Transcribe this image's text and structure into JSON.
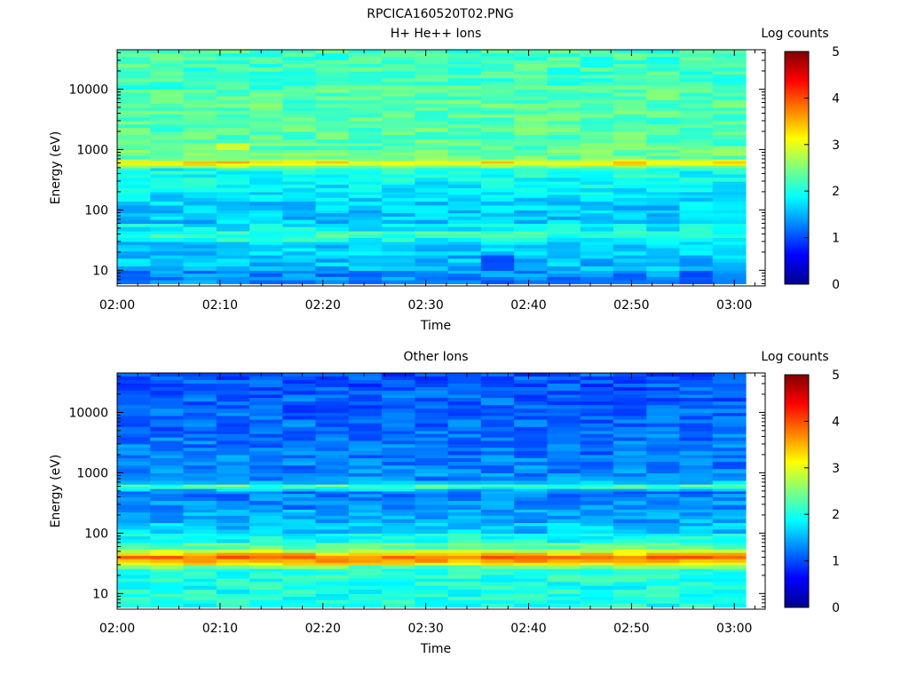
{
  "figure_title": "RPCICA160520T02.PNG",
  "chart_data": [
    {
      "type": "heatmap",
      "title": "H+ He++ Ions",
      "xlabel": "Time",
      "ylabel": "Energy (eV)",
      "x_ticks": [
        "02:00",
        "02:10",
        "02:20",
        "02:30",
        "02:40",
        "02:50",
        "03:00"
      ],
      "x_range": [
        "02:00",
        "03:03"
      ],
      "y_scale": "log",
      "y_range": [
        5.5,
        45000
      ],
      "y_ticks": [
        10,
        100,
        1000,
        10000
      ],
      "y_tick_labels": [
        "10",
        "100",
        "1000",
        "10000"
      ],
      "colorbar": {
        "title": "Log counts",
        "range": [
          0,
          5
        ],
        "ticks": [
          "0",
          "1",
          "2",
          "3",
          "4",
          "5"
        ],
        "colormap": "jet"
      },
      "time_bins": 19,
      "time_start_min": 0,
      "time_bin_min": 3.27,
      "energy_bands_ev": [
        6,
        10,
        18,
        30,
        35,
        40,
        45,
        60,
        100,
        140,
        200,
        300,
        500,
        550,
        600,
        650,
        700,
        1000,
        1300,
        1500,
        2000,
        5000,
        10000,
        20000,
        45000
      ],
      "band_log_counts": [
        1.3,
        1.55,
        1.65,
        1.95,
        2.15,
        2.1,
        1.85,
        1.6,
        1.65,
        1.75,
        1.85,
        1.95,
        2.6,
        3.1,
        3.2,
        2.75,
        2.4,
        2.3,
        2.3,
        2.3,
        2.3,
        2.3,
        2.2,
        2.2
      ],
      "highlights": [
        {
          "t_bin": 3,
          "band": 14,
          "log_counts": 3.5
        },
        {
          "t_bin": 6,
          "band": 14,
          "log_counts": 3.4
        },
        {
          "t_bin": 3,
          "band": 17,
          "log_counts": 2.85
        },
        {
          "t_bin": 15,
          "band": 14,
          "log_counts": 3.4
        },
        {
          "t_bin": 18,
          "band": 14,
          "log_counts": 3.4
        },
        {
          "t_bin": 11,
          "band": 1,
          "log_counts": 1.0
        },
        {
          "t_bin": 17,
          "band": 0,
          "log_counts": 1.0
        }
      ]
    },
    {
      "type": "heatmap",
      "title": "Other Ions",
      "xlabel": "Time",
      "ylabel": "Energy (eV)",
      "x_ticks": [
        "02:00",
        "02:10",
        "02:20",
        "02:30",
        "02:40",
        "02:50",
        "03:00"
      ],
      "x_range": [
        "02:00",
        "03:03"
      ],
      "y_scale": "log",
      "y_range": [
        5.5,
        45000
      ],
      "y_ticks": [
        10,
        100,
        1000,
        10000
      ],
      "y_tick_labels": [
        "10",
        "100",
        "1000",
        "10000"
      ],
      "colorbar": {
        "title": "Log counts",
        "range": [
          0,
          5
        ],
        "ticks": [
          "0",
          "1",
          "2",
          "3",
          "4",
          "5"
        ],
        "colormap": "jet"
      },
      "time_bins": 19,
      "time_start_min": 0,
      "time_bin_min": 3.27,
      "energy_bands_ev": [
        6,
        10,
        18,
        26,
        30,
        33,
        38,
        43,
        48,
        55,
        70,
        100,
        150,
        250,
        400,
        500,
        550,
        600,
        650,
        750,
        1000,
        2000,
        5000,
        10000,
        20000,
        45000
      ],
      "band_log_counts": [
        2.0,
        2.0,
        2.05,
        2.4,
        3.2,
        3.6,
        3.8,
        3.4,
        2.8,
        2.3,
        1.95,
        1.6,
        1.45,
        1.3,
        1.25,
        1.6,
        2.05,
        2.2,
        1.6,
        1.3,
        1.25,
        1.2,
        1.15,
        1.1,
        1.05
      ],
      "highlights": [
        {
          "t_bin": 3,
          "band": 17,
          "log_counts": 2.6
        },
        {
          "t_bin": 6,
          "band": 17,
          "log_counts": 2.6
        },
        {
          "t_bin": 17,
          "band": 17,
          "log_counts": 2.55
        },
        {
          "t_bin": 5,
          "band": 6,
          "log_counts": 4.0
        },
        {
          "t_bin": 1,
          "band": 6,
          "log_counts": 3.95
        }
      ]
    }
  ]
}
